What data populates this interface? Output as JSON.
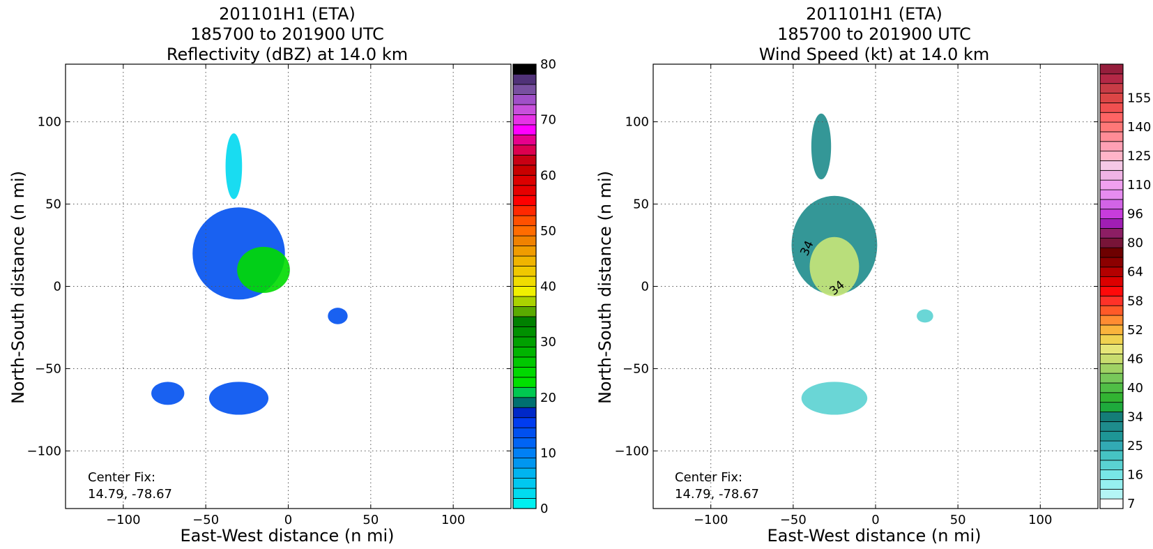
{
  "chart_data": [
    {
      "type": "heatmap",
      "title": [
        "201101H1 (ETA)",
        "185700 to 201900 UTC",
        "Reflectivity (dBZ) at 14.0 km"
      ],
      "xlabel": "East-West distance (n mi)",
      "ylabel": "North-South distance (n mi)",
      "xlim": [
        -135,
        135
      ],
      "ylim": [
        -135,
        135
      ],
      "xticks": [
        -100,
        -50,
        0,
        50,
        100
      ],
      "yticks": [
        -100,
        -50,
        0,
        50,
        100
      ],
      "grid": true,
      "annotation": [
        "Center Fix:",
        "14.79, -78.67"
      ],
      "colorbar": {
        "levels": 40,
        "ticks": [
          "0",
          "10",
          "20",
          "30",
          "40",
          "50",
          "60",
          "70",
          "80"
        ],
        "colors": [
          "#00f0f0",
          "#00dcf0",
          "#00c8f0",
          "#00b4f0",
          "#0096f0",
          "#0080f5",
          "#0064f5",
          "#0050f0",
          "#003cf0",
          "#0028c8",
          "#007070",
          "#00c850",
          "#00e000",
          "#00d800",
          "#00c800",
          "#00b400",
          "#00a000",
          "#009000",
          "#008000",
          "#5aaa00",
          "#aad200",
          "#f0f000",
          "#f0dc00",
          "#f0c800",
          "#f0b400",
          "#f09c00",
          "#f08200",
          "#ff6c00",
          "#ff5000",
          "#ff2800",
          "#ff0000",
          "#e60000",
          "#dc0000",
          "#c80000",
          "#c80014",
          "#dc0050",
          "#e6008c",
          "#ff00ff",
          "#e632e6",
          "#c850dc"
        ],
        "extra_top": [
          "#a050c8",
          "#7850a0",
          "#503278",
          "#000000"
        ]
      },
      "storm_cells": [
        {
          "x": -30,
          "y": 20,
          "rx": 28,
          "ry": 28,
          "level": "low"
        },
        {
          "x": -15,
          "y": 10,
          "rx": 16,
          "ry": 14,
          "level": "mid"
        },
        {
          "x": -33,
          "y": 73,
          "rx": 5,
          "ry": 20,
          "level": "cyan"
        },
        {
          "x": 30,
          "y": -18,
          "rx": 6,
          "ry": 5,
          "level": "low"
        },
        {
          "x": -30,
          "y": -68,
          "rx": 18,
          "ry": 10,
          "level": "low"
        },
        {
          "x": -73,
          "y": -65,
          "rx": 10,
          "ry": 7,
          "level": "low"
        }
      ]
    },
    {
      "type": "heatmap",
      "title": [
        "201101H1 (ETA)",
        "185700 to 201900 UTC",
        "Wind Speed (kt) at 14.0 km"
      ],
      "xlabel": "East-West distance (n mi)",
      "ylabel": "North-South distance (n mi)",
      "xlim": [
        -135,
        135
      ],
      "ylim": [
        -135,
        135
      ],
      "xticks": [
        -100,
        -50,
        0,
        50,
        100
      ],
      "yticks": [
        -100,
        -50,
        0,
        50,
        100
      ],
      "grid": true,
      "annotation": [
        "Center Fix:",
        "14.79, -78.67"
      ],
      "contour_label": "34",
      "colorbar": {
        "ticks": [
          "7",
          "16",
          "25",
          "34",
          "40",
          "46",
          "52",
          "58",
          "64",
          "80",
          "96",
          "110",
          "125",
          "140",
          "155"
        ],
        "colors": [
          "#ffffff",
          "#b4f5f5",
          "#96f0f0",
          "#78e6e6",
          "#5ad2d2",
          "#46c3c3",
          "#32aab4",
          "#1e9696",
          "#1e8c8c",
          "#147d78",
          "#1eaa3c",
          "#32b432",
          "#50be46",
          "#78c85a",
          "#a0d264",
          "#c8dc6e",
          "#e6e678",
          "#f0d250",
          "#fab43c",
          "#ff8c32",
          "#ff5a28",
          "#ff3228",
          "#ff0a0a",
          "#dc0000",
          "#b40000",
          "#8c0000",
          "#6e0000",
          "#781438",
          "#8c1e64",
          "#a01eb4",
          "#c83cdc",
          "#d264e6",
          "#e68cf0",
          "#f0a0f0",
          "#f0b4e6",
          "#f5c8e6",
          "#ffb4c8",
          "#ffa0b4",
          "#ff8c96",
          "#ff7878",
          "#ff6464",
          "#f05050",
          "#dc4646",
          "#c83c46",
          "#b42846",
          "#961e3c"
        ]
      },
      "storm_cells": [
        {
          "x": -25,
          "y": 25,
          "rx": 26,
          "ry": 30,
          "level": "low"
        },
        {
          "x": -25,
          "y": 12,
          "rx": 15,
          "ry": 18,
          "level": "high"
        },
        {
          "x": -33,
          "y": 85,
          "rx": 6,
          "ry": 20,
          "level": "low"
        },
        {
          "x": 30,
          "y": -18,
          "rx": 5,
          "ry": 4,
          "level": "cyan"
        },
        {
          "x": -25,
          "y": -68,
          "rx": 20,
          "ry": 10,
          "level": "cyan"
        }
      ]
    }
  ]
}
